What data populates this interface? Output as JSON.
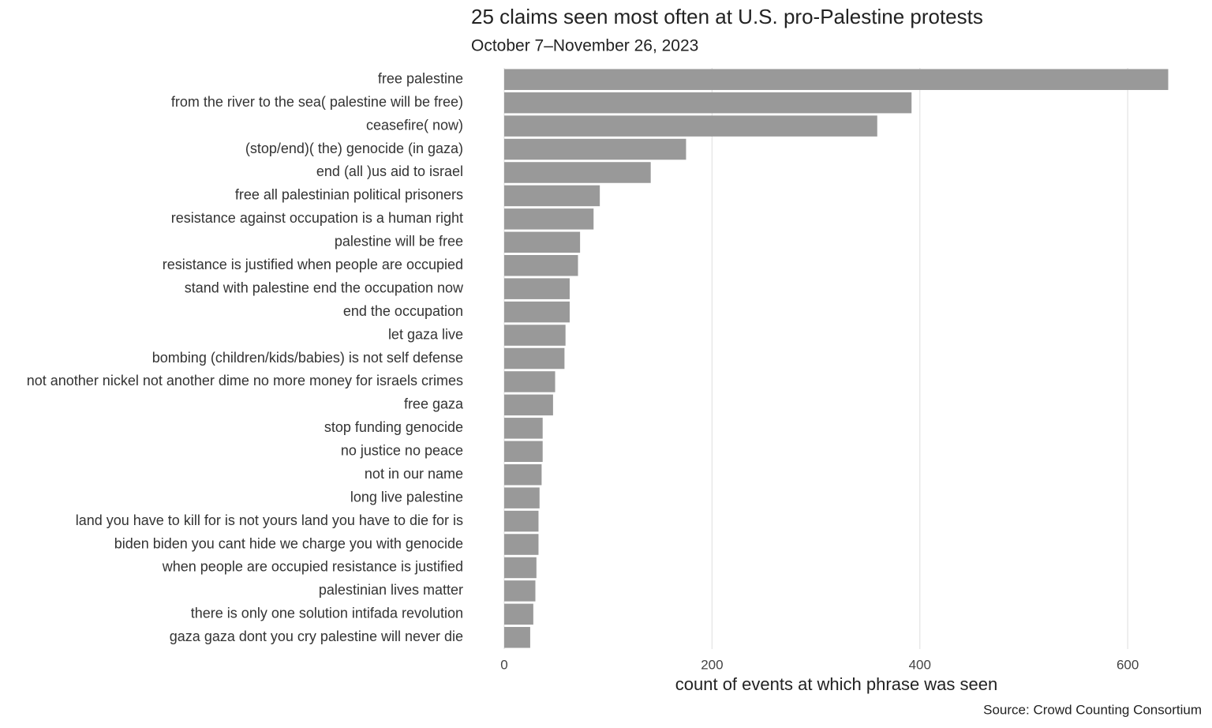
{
  "chart_data": {
    "type": "bar",
    "orientation": "horizontal",
    "title": "25 claims seen most often at U.S. pro-Palestine protests",
    "subtitle": "October 7–November 26, 2023",
    "x_label": "count of events at which phrase was seen",
    "source": "Source: Crowd Counting Consortium",
    "categories": [
      "free palestine",
      "from the river to the sea( palestine will be free)",
      "ceasefire( now)",
      "(stop/end)( the) genocide (in gaza)",
      "end (all )us aid to israel",
      "free all palestinian political prisoners",
      "resistance against occupation is a human right",
      "palestine will be free",
      "resistance is justified when people are occupied",
      "stand with palestine end the occupation now",
      "end the occupation",
      "let gaza live",
      "bombing (children/kids/babies) is not self defense",
      "not another nickel not another dime no more money for israels crimes",
      "free gaza",
      "stop funding genocide",
      "no justice no peace",
      "not in our name",
      "long live palestine",
      "land you have to kill for is not yours land you have to die for is",
      "biden biden you cant hide we charge you with genocide",
      "when people are occupied resistance is justified",
      "palestinian lives matter",
      "there is only one solution intifada revolution",
      "gaza gaza dont you cry palestine will never die"
    ],
    "values": [
      639,
      392,
      359,
      175,
      141,
      92,
      86,
      73,
      71,
      63,
      63,
      59,
      58,
      49,
      47,
      37,
      37,
      36,
      34,
      33,
      33,
      31,
      30,
      28,
      25
    ],
    "color": "#999999",
    "xlim": [
      0,
      669
    ],
    "xticks": [
      0,
      200,
      400,
      600
    ],
    "grid": true
  }
}
